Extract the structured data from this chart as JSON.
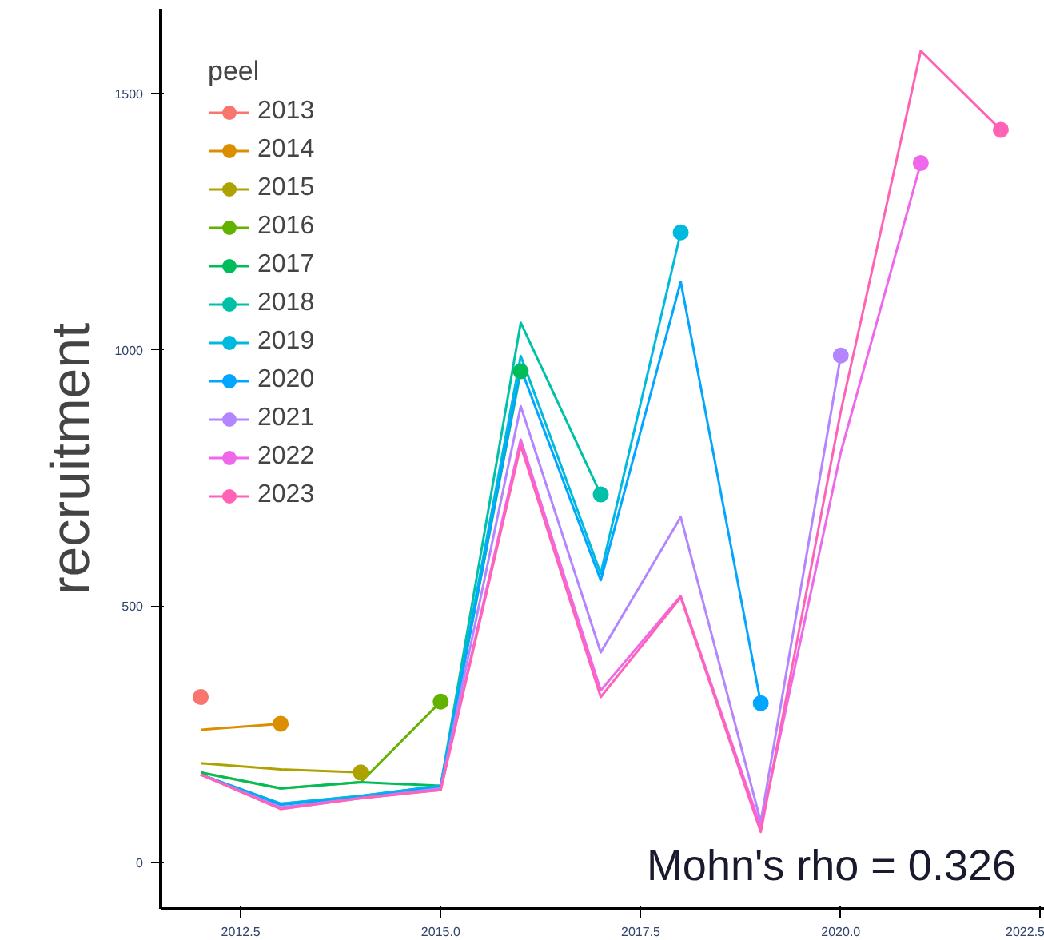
{
  "chart_data": {
    "type": "line",
    "ylabel": "recruitment",
    "legend_title": "peel",
    "legend": "top left",
    "grid": false,
    "xlim": [
      2011.5,
      2022.55
    ],
    "ylim": [
      -90,
      1665
    ],
    "xticks": [
      2012.5,
      {
        "value": 2015,
        "label": "2015.0"
      },
      2017.5,
      {
        "value": 2020,
        "label": "2020.0"
      },
      2022.5
    ],
    "yticks": [
      0,
      500,
      1000,
      1500
    ],
    "annotations": [
      "Mohn's rho = 0.326"
    ],
    "series": [
      {
        "name": "2013",
        "color": "#f8766d",
        "marker": "circle",
        "x": [
          2012
        ],
        "values": [
          323
        ]
      },
      {
        "name": "2014",
        "color": "#db8e00",
        "x": [
          2012,
          2013
        ],
        "values": [
          259,
          271
        ]
      },
      {
        "name": "2015",
        "color": "#aea200",
        "x": [
          2012,
          2013,
          2014
        ],
        "values": [
          194,
          182,
          176
        ]
      },
      {
        "name": "2016",
        "color": "#64b200",
        "x": [
          2012,
          2013,
          2014,
          2015
        ],
        "values": [
          176,
          145,
          157,
          314
        ]
      },
      {
        "name": "2017",
        "color": "#00bd5c",
        "x": [
          2012,
          2013,
          2014,
          2015,
          2016
        ],
        "values": [
          176,
          145,
          157,
          150,
          958
        ]
      },
      {
        "name": "2018",
        "color": "#00c1a7",
        "x": [
          2012,
          2013,
          2014,
          2015,
          2016,
          2017
        ],
        "values": [
          172,
          115,
          130,
          150,
          1053,
          718
        ]
      },
      {
        "name": "2019",
        "color": "#00bade",
        "x": [
          2012,
          2013,
          2014,
          2015,
          2016,
          2017,
          2018
        ],
        "values": [
          172,
          115,
          130,
          150,
          988,
          564,
          1229
        ]
      },
      {
        "name": "2020",
        "color": "#00a6ff",
        "x": [
          2012,
          2013,
          2014,
          2015,
          2016,
          2017,
          2018,
          2019
        ],
        "values": [
          172,
          113,
          128,
          148,
          964,
          551,
          1133,
          311
        ]
      },
      {
        "name": "2021",
        "color": "#b385ff",
        "x": [
          2012,
          2013,
          2014,
          2015,
          2016,
          2017,
          2018,
          2019,
          2020
        ],
        "values": [
          172,
          108,
          126,
          145,
          890,
          410,
          674,
          80,
          989
        ]
      },
      {
        "name": "2022",
        "color": "#ef67eb",
        "x": [
          2012,
          2013,
          2014,
          2015,
          2016,
          2017,
          2018,
          2019,
          2020,
          2021
        ],
        "values": [
          172,
          105,
          126,
          142,
          825,
          336,
          520,
          70,
          800,
          1364
        ]
      },
      {
        "name": "2023",
        "color": "#ff63b6",
        "x": [
          2012,
          2013,
          2014,
          2015,
          2016,
          2017,
          2018,
          2019,
          2020,
          2021,
          2022
        ],
        "values": [
          172,
          105,
          126,
          142,
          813,
          323,
          517,
          60,
          880,
          1583,
          1429
        ]
      }
    ]
  }
}
